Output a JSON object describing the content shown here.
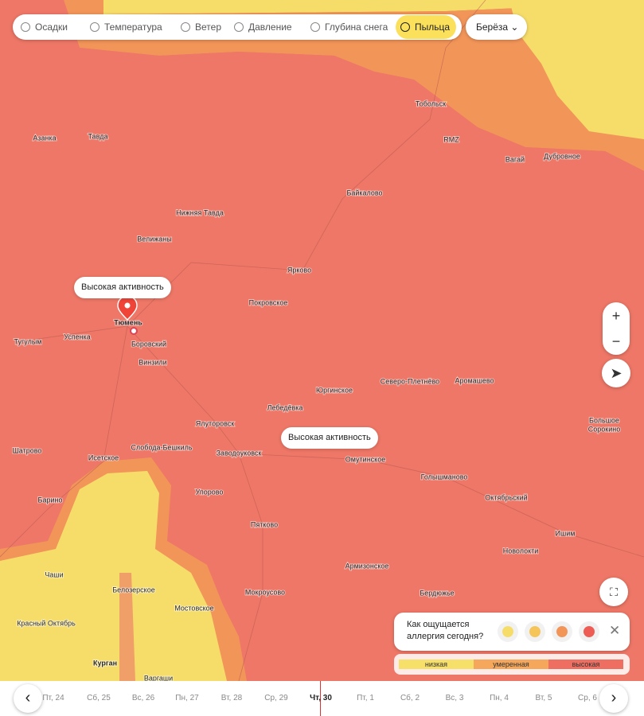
{
  "tabs": [
    "Осадки",
    "Температура",
    "Ветер",
    "Давление",
    "Глубина снега",
    "Пыльца"
  ],
  "dropdown": "Берёза",
  "map": {
    "places": [
      "Тобольск",
      "RMZ",
      "Вагай",
      "Дубровное",
      "Азанка",
      "Тавда",
      "Байкалово",
      "Нижняя Тавда",
      "Велижаны",
      "Ярково",
      "Покровское",
      "Тюмень",
      "Тугулым",
      "Успенка",
      "Боровский",
      "Винзили",
      "Северо-Плетнёво",
      "Аромашево",
      "Юргинское",
      "Лебедёвка",
      "Ялуторовск",
      "Большое",
      "Сорокино",
      "Шатрово",
      "Исетское",
      "Слобода-Бешкиль",
      "Заводоуковск",
      "Омутинское",
      "Голышманово",
      "Упорово",
      "Октябрьский",
      "Барино",
      "Пятково",
      "Ишим",
      "Новолокти",
      "Чаши",
      "Армизонское",
      "Белозерское",
      "Мокроусово",
      "Бердюжье",
      "Мостовское",
      "Красный Октябрь",
      "Курган",
      "Варгаши"
    ],
    "activity_labels": [
      "Высокая активность",
      "Высокая активность"
    ]
  },
  "feedback": {
    "question": "Как ощущается аллергия сегодня?"
  },
  "legend": [
    "низкая",
    "умеренная",
    "высокая"
  ],
  "timeline": [
    "Пт, 24",
    "Сб, 25",
    "Вс, 26",
    "Пн, 27",
    "Вт, 28",
    "Ср, 29",
    "Чт, 30",
    "Пт, 1",
    "Сб, 2",
    "Вс, 3",
    "Пн, 4",
    "Вт, 5",
    "Ср, 6"
  ]
}
